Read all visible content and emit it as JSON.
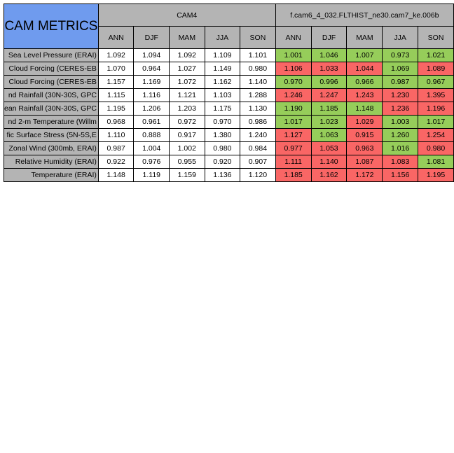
{
  "title": "CAM METRICS",
  "groups": [
    {
      "name": "CAM4"
    },
    {
      "name": "f.cam6_4_032.FLTHIST_ne30.cam7_ke.006b"
    }
  ],
  "seasons": [
    "ANN",
    "DJF",
    "MAM",
    "JJA",
    "SON"
  ],
  "colors": {
    "header_blue": "#6f9bee",
    "header_gray": "#b4b4b4",
    "better_green": "#96cd5a",
    "worse_red": "#f96665"
  },
  "rows": [
    {
      "label": "Sea Level Pressure (ERAI)",
      "cam4": [
        "1.092",
        "1.094",
        "1.092",
        "1.109",
        "1.101"
      ],
      "test": [
        "1.001",
        "1.046",
        "1.007",
        "0.973",
        "1.021"
      ],
      "status": [
        "good",
        "good",
        "good",
        "good",
        "good"
      ]
    },
    {
      "label": "Cloud Forcing (CERES-EB",
      "cam4": [
        "1.070",
        "0.964",
        "1.027",
        "1.149",
        "0.980"
      ],
      "test": [
        "1.106",
        "1.033",
        "1.044",
        "1.069",
        "1.089"
      ],
      "status": [
        "bad",
        "bad",
        "bad",
        "good",
        "bad"
      ]
    },
    {
      "label": "Cloud Forcing (CERES-EB",
      "cam4": [
        "1.157",
        "1.169",
        "1.072",
        "1.162",
        "1.140"
      ],
      "test": [
        "0.970",
        "0.996",
        "0.966",
        "0.987",
        "0.967"
      ],
      "status": [
        "good",
        "good",
        "good",
        "good",
        "good"
      ]
    },
    {
      "label": "nd Rainfall (30N-30S, GPC",
      "cam4": [
        "1.115",
        "1.116",
        "1.121",
        "1.103",
        "1.288"
      ],
      "test": [
        "1.246",
        "1.247",
        "1.243",
        "1.230",
        "1.395"
      ],
      "status": [
        "bad",
        "bad",
        "bad",
        "bad",
        "bad"
      ]
    },
    {
      "label": "ean Rainfall (30N-30S, GPC",
      "cam4": [
        "1.195",
        "1.206",
        "1.203",
        "1.175",
        "1.130"
      ],
      "test": [
        "1.190",
        "1.185",
        "1.148",
        "1.236",
        "1.196"
      ],
      "status": [
        "good",
        "good",
        "good",
        "bad",
        "bad"
      ]
    },
    {
      "label": "nd 2-m Temperature (Willm",
      "cam4": [
        "0.968",
        "0.961",
        "0.972",
        "0.970",
        "0.986"
      ],
      "test": [
        "1.017",
        "1.023",
        "1.029",
        "1.003",
        "1.017"
      ],
      "status": [
        "good",
        "good",
        "bad",
        "good",
        "good"
      ]
    },
    {
      "label": "fic Surface Stress (5N-5S,E",
      "cam4": [
        "1.110",
        "0.888",
        "0.917",
        "1.380",
        "1.240"
      ],
      "test": [
        "1.127",
        "1.063",
        "0.915",
        "1.260",
        "1.254"
      ],
      "status": [
        "bad",
        "good",
        "bad",
        "good",
        "bad"
      ]
    },
    {
      "label": "Zonal Wind (300mb, ERAI)",
      "cam4": [
        "0.987",
        "1.004",
        "1.002",
        "0.980",
        "0.984"
      ],
      "test": [
        "0.977",
        "1.053",
        "0.963",
        "1.016",
        "0.980"
      ],
      "status": [
        "bad",
        "bad",
        "bad",
        "good",
        "bad"
      ]
    },
    {
      "label": "Relative Humidity (ERAI)",
      "cam4": [
        "0.922",
        "0.976",
        "0.955",
        "0.920",
        "0.907"
      ],
      "test": [
        "1.111",
        "1.140",
        "1.087",
        "1.083",
        "1.081"
      ],
      "status": [
        "bad",
        "bad",
        "bad",
        "bad",
        "good"
      ]
    },
    {
      "label": "Temperature (ERAI)",
      "cam4": [
        "1.148",
        "1.119",
        "1.159",
        "1.136",
        "1.120"
      ],
      "test": [
        "1.185",
        "1.162",
        "1.172",
        "1.156",
        "1.195"
      ],
      "status": [
        "bad",
        "bad",
        "bad",
        "bad",
        "bad"
      ]
    }
  ]
}
